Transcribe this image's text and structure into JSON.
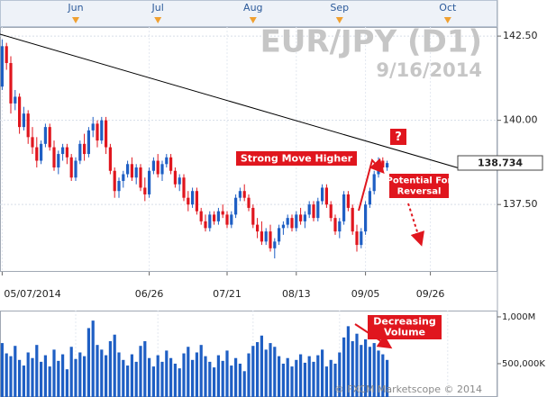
{
  "chart_data": {
    "type": "candlestick",
    "title": "EUR/JPY (D1)",
    "subtitle": "9/16/2014",
    "categories": [
      "05/07/2014",
      null,
      null,
      null,
      null,
      null,
      null,
      null,
      null,
      null,
      null,
      null,
      null,
      null,
      null,
      null,
      null,
      null,
      null,
      null,
      null,
      null,
      null,
      null,
      null,
      null,
      null,
      null,
      null,
      null,
      null,
      null,
      null,
      null,
      "06/26",
      null,
      null,
      null,
      null,
      null,
      null,
      null,
      null,
      null,
      null,
      null,
      null,
      null,
      null,
      null,
      null,
      null,
      "07/21",
      null,
      null,
      null,
      null,
      null,
      null,
      null,
      null,
      null,
      null,
      null,
      null,
      null,
      null,
      null,
      "08/13",
      null,
      null,
      null,
      null,
      null,
      null,
      null,
      null,
      null,
      null,
      null,
      null,
      null,
      null,
      null,
      "09/05",
      null,
      null,
      null,
      null,
      null,
      null,
      null,
      null,
      null,
      null,
      null,
      null,
      null,
      null,
      "09/26",
      null,
      null,
      null,
      null,
      null,
      null,
      null,
      null,
      null,
      null,
      null,
      null,
      null,
      null,
      null
    ],
    "top_categories": [
      null,
      null,
      null,
      null,
      null,
      null,
      null,
      null,
      null,
      null,
      null,
      null,
      null,
      null,
      null,
      null,
      null,
      "Jun",
      null,
      null,
      null,
      null,
      null,
      null,
      null,
      null,
      null,
      null,
      null,
      null,
      null,
      null,
      null,
      null,
      null,
      null,
      "Jul",
      null,
      null,
      null,
      null,
      null,
      null,
      null,
      null,
      null,
      null,
      null,
      null,
      null,
      null,
      null,
      null,
      null,
      null,
      null,
      null,
      null,
      "Aug",
      null,
      null,
      null,
      null,
      null,
      null,
      null,
      null,
      null,
      null,
      null,
      null,
      null,
      null,
      null,
      null,
      null,
      null,
      null,
      "Sep",
      null,
      null,
      null,
      null,
      null,
      null,
      null,
      null,
      null,
      null,
      null,
      null,
      null,
      null,
      null,
      null,
      null,
      null,
      null,
      null,
      null,
      null,
      null,
      null,
      "Oct",
      null,
      null,
      null,
      null,
      null,
      null,
      null,
      null,
      null,
      null,
      null
    ],
    "open": [
      141.0,
      142.2,
      141.7,
      140.5,
      140.7,
      139.8,
      140.2,
      139.5,
      139.2,
      138.8,
      139.3,
      139.8,
      139.2,
      138.6,
      139.0,
      139.2,
      138.9,
      138.3,
      138.8,
      139.3,
      139.0,
      139.7,
      139.9,
      139.4,
      140.0,
      139.2,
      138.5,
      137.9,
      138.2,
      138.4,
      138.7,
      138.3,
      138.6,
      138.0,
      137.8,
      138.5,
      138.8,
      138.4,
      138.7,
      138.9,
      138.5,
      138.1,
      138.3,
      137.7,
      137.5,
      137.9,
      137.3,
      137.0,
      136.8,
      137.2,
      137.0,
      137.3,
      137.2,
      136.9,
      137.2,
      137.7,
      137.9,
      137.7,
      137.4,
      136.9,
      136.7,
      136.4,
      136.7,
      136.2,
      136.4,
      136.8,
      136.9,
      137.1,
      136.8,
      137.2,
      137.0,
      137.2,
      137.5,
      137.1,
      137.6,
      138.0,
      137.5,
      137.1,
      136.7,
      137.0,
      137.8,
      137.4,
      136.7,
      136.3,
      136.7,
      137.5,
      137.9,
      138.4,
      138.8,
      138.6,
      null,
      null,
      null,
      null,
      null,
      null,
      null,
      null,
      null,
      null,
      null,
      null,
      null,
      null,
      null,
      null,
      null,
      null,
      null,
      null,
      null,
      null,
      null,
      null,
      null
    ],
    "high": [
      142.4,
      142.3,
      141.9,
      140.9,
      140.8,
      140.4,
      140.3,
      139.8,
      139.5,
      139.4,
      139.9,
      139.9,
      139.4,
      139.1,
      139.3,
      139.3,
      139.0,
      138.9,
      139.4,
      139.6,
      139.8,
      140.1,
      140.0,
      140.1,
      140.1,
      139.3,
      138.6,
      138.3,
      138.5,
      138.8,
      138.9,
      138.7,
      138.7,
      138.3,
      138.6,
      138.9,
      139.0,
      138.8,
      139.0,
      139.0,
      138.6,
      138.4,
      138.4,
      137.9,
      138.0,
      138.0,
      137.4,
      137.2,
      137.3,
      137.3,
      137.4,
      137.5,
      137.3,
      137.3,
      137.8,
      138.0,
      138.1,
      137.8,
      137.5,
      137.1,
      137.0,
      136.8,
      136.9,
      136.5,
      136.9,
      137.0,
      137.2,
      137.2,
      137.3,
      137.4,
      137.3,
      137.6,
      137.6,
      137.7,
      138.1,
      138.1,
      137.6,
      137.2,
      137.1,
      137.9,
      137.9,
      137.5,
      136.9,
      136.8,
      137.6,
      138.0,
      138.5,
      138.9,
      138.9,
      138.8,
      null,
      null,
      null,
      null,
      null,
      null,
      null,
      null,
      null,
      null,
      null,
      null,
      null,
      null,
      null,
      null,
      null,
      null,
      null,
      null,
      null,
      null,
      null,
      null,
      null
    ],
    "low": [
      140.9,
      141.5,
      140.2,
      140.3,
      139.6,
      139.7,
      139.3,
      139.0,
      138.6,
      138.7,
      139.2,
      139.1,
      138.5,
      138.4,
      138.8,
      138.7,
      138.2,
      138.2,
      138.7,
      138.8,
      138.9,
      139.5,
      139.2,
      139.3,
      139.0,
      138.4,
      137.7,
      137.7,
      138.0,
      138.3,
      138.2,
      138.1,
      137.9,
      137.6,
      137.7,
      138.4,
      138.3,
      138.2,
      138.6,
      138.4,
      138.0,
      137.9,
      137.6,
      137.3,
      137.4,
      137.2,
      136.9,
      136.7,
      136.7,
      136.9,
      136.9,
      137.1,
      136.8,
      136.8,
      137.1,
      137.6,
      137.6,
      137.3,
      136.8,
      136.5,
      136.3,
      136.3,
      136.1,
      135.9,
      136.3,
      136.6,
      136.8,
      136.7,
      136.7,
      136.9,
      136.8,
      137.1,
      137.0,
      137.0,
      137.5,
      137.4,
      137.0,
      136.6,
      136.5,
      136.9,
      137.3,
      136.6,
      136.1,
      136.2,
      136.6,
      137.4,
      137.8,
      138.3,
      138.5,
      138.5,
      null,
      null,
      null,
      null,
      null,
      null,
      null,
      null,
      null,
      null,
      null,
      null,
      null,
      null,
      null,
      null,
      null,
      null,
      null,
      null,
      null,
      null,
      null,
      null,
      null
    ],
    "close": [
      142.2,
      141.7,
      140.5,
      140.7,
      139.8,
      140.2,
      139.5,
      139.2,
      138.8,
      139.3,
      139.8,
      139.2,
      138.6,
      139.0,
      139.2,
      138.9,
      138.3,
      138.8,
      139.3,
      139.0,
      139.7,
      139.9,
      139.4,
      140.0,
      139.2,
      138.5,
      137.9,
      138.2,
      138.4,
      138.7,
      138.3,
      138.6,
      138.0,
      137.8,
      138.5,
      138.8,
      138.4,
      138.7,
      138.9,
      138.5,
      138.1,
      138.3,
      137.7,
      137.5,
      137.9,
      137.3,
      137.0,
      136.8,
      137.2,
      137.0,
      137.3,
      137.2,
      136.9,
      137.2,
      137.7,
      137.9,
      137.7,
      137.4,
      136.9,
      136.7,
      136.4,
      136.7,
      136.2,
      136.4,
      136.8,
      136.9,
      137.1,
      136.8,
      137.2,
      137.0,
      137.2,
      137.5,
      137.1,
      137.6,
      138.0,
      137.5,
      137.1,
      136.7,
      137.0,
      137.8,
      137.4,
      136.7,
      136.3,
      136.7,
      137.5,
      137.9,
      138.4,
      138.8,
      138.6,
      138.73,
      null,
      null,
      null,
      null,
      null,
      null,
      null,
      null,
      null,
      null,
      null,
      null,
      null,
      null,
      null,
      null,
      null,
      null,
      null,
      null,
      null,
      null,
      null,
      null,
      null
    ],
    "up_color": "#1f5fc4",
    "down_color": "#e0161e",
    "ylim": [
      135.5,
      142.77
    ],
    "yticks": [
      {
        "value": 137.5,
        "label": "137.50"
      },
      {
        "value": 140,
        "label": "140.00"
      },
      {
        "value": 142.5,
        "label": "142.50"
      }
    ],
    "grid": true,
    "last_price": 138.734,
    "volume": {
      "color": "#1f5fc4",
      "values": [
        720000000,
        610000000,
        580000000,
        690000000,
        540000000,
        480000000,
        620000000,
        560000000,
        700000000,
        520000000,
        590000000,
        470000000,
        650000000,
        530000000,
        600000000,
        440000000,
        680000000,
        550000000,
        620000000,
        580000000,
        880000000,
        960000000,
        700000000,
        650000000,
        590000000,
        740000000,
        810000000,
        620000000,
        540000000,
        480000000,
        600000000,
        520000000,
        690000000,
        740000000,
        560000000,
        470000000,
        590000000,
        520000000,
        640000000,
        560000000,
        500000000,
        450000000,
        610000000,
        680000000,
        540000000,
        620000000,
        700000000,
        580000000,
        520000000,
        460000000,
        590000000,
        530000000,
        640000000,
        480000000,
        560000000,
        500000000,
        420000000,
        610000000,
        690000000,
        730000000,
        800000000,
        650000000,
        720000000,
        680000000,
        580000000,
        500000000,
        560000000,
        470000000,
        540000000,
        600000000,
        510000000,
        580000000,
        520000000,
        590000000,
        650000000,
        470000000,
        540000000,
        500000000,
        620000000,
        780000000,
        900000000,
        740000000,
        820000000,
        700000000,
        760000000,
        680000000,
        720000000,
        640000000,
        600000000,
        540000000,
        null,
        null,
        null,
        null,
        null,
        null,
        null,
        null,
        null,
        null,
        null,
        null,
        null,
        null,
        null,
        null,
        null,
        null,
        null,
        null,
        null,
        null,
        null,
        null,
        null
      ],
      "ylim": [
        144000000,
        1067000000
      ],
      "yticks": [
        {
          "value": 500000000,
          "label": "500,000K"
        },
        {
          "value": 1000000000,
          "label": "1,000M"
        }
      ]
    },
    "annotations": {
      "strong_move": "Strong Move Higher",
      "question": "?",
      "reversal": [
        "Potential For",
        "Reversal"
      ],
      "volume_note": [
        "Decreasing",
        "Volume"
      ]
    },
    "watermark": "© FXCM Marketscope © 2014"
  }
}
